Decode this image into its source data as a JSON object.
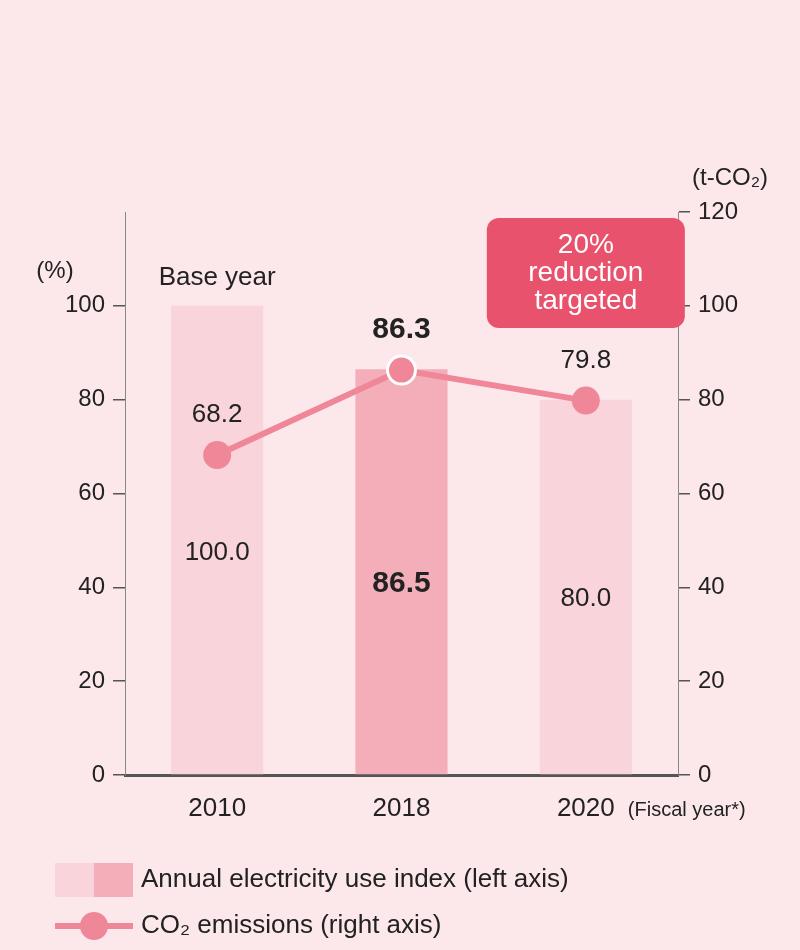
{
  "chart_data": {
    "type": "bar",
    "categories": [
      "2010",
      "2018",
      "2020"
    ],
    "x_label": "(Fiscal year*)",
    "y_label": "(%)",
    "y2_label": "(t-CO₂)",
    "series": [
      {
        "name": "Annual electricity use index (left axis)",
        "type": "bar",
        "colors": [
          "#f9d4db",
          "#f3aeba",
          "#f9d4db"
        ],
        "values": [
          100.0,
          86.5,
          80.0
        ],
        "value_labels": [
          "100.0",
          "86.5",
          "80.0"
        ]
      },
      {
        "name": "CO₂ emissions (right axis)",
        "type": "line",
        "axis": "y2",
        "color": "#ef8799",
        "marker": "circle",
        "values": [
          68.2,
          86.3,
          79.8
        ]
      }
    ],
    "ylim": [
      0,
      120
    ],
    "yticks": [
      0,
      20,
      40,
      60,
      80,
      100
    ],
    "y2lim": [
      0,
      120
    ],
    "y2ticks": [
      0,
      20,
      40,
      60,
      80,
      100,
      120
    ],
    "data_labels": true,
    "grid": false,
    "legend": "bottom",
    "annotations": [
      {
        "text": "Base year",
        "category": "2010"
      },
      {
        "text": "20% reduction targeted",
        "category": "2020",
        "color": "#e8526d"
      }
    ]
  }
}
